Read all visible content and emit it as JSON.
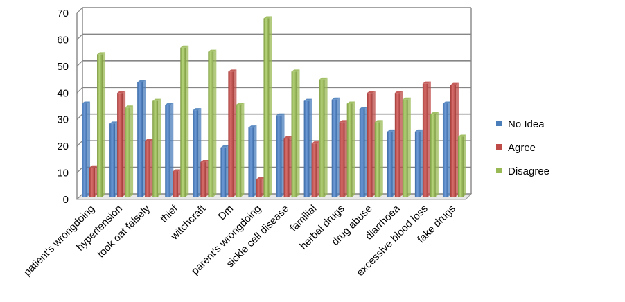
{
  "chart_data": {
    "type": "bar",
    "title": "",
    "xlabel": "",
    "ylabel": "",
    "ylim": [
      0,
      70
    ],
    "yticks": [
      0,
      10,
      20,
      30,
      40,
      50,
      60,
      70
    ],
    "grid": true,
    "legend_position": "right",
    "categories": [
      "patient's wrongdoing",
      "hypertension",
      "took oat falsely",
      "thief",
      "witchcraft",
      "Dm",
      "parent's  wrongdoing",
      "sickle cell disease",
      "familial",
      "herbal drugs",
      "drug abuse",
      "diarrhoea",
      "excessive blood loss",
      "fake drugs"
    ],
    "series": [
      {
        "name": "No Idea",
        "color": "#4a7ebb",
        "values": [
          35,
          27.5,
          43,
          34.5,
          32.5,
          18.5,
          26,
          30.5,
          36,
          36.5,
          33,
          24.5,
          24.5,
          35
        ]
      },
      {
        "name": "Agree",
        "color": "#be4b48",
        "values": [
          11,
          39,
          21,
          9.5,
          13,
          47,
          6.5,
          22,
          20,
          28,
          39,
          39,
          42.5,
          42
        ]
      },
      {
        "name": "Disagree",
        "color": "#98b954",
        "values": [
          53.5,
          33.5,
          36,
          56,
          54.5,
          34.5,
          67,
          47,
          44,
          35,
          28,
          36.5,
          31,
          22.5
        ]
      }
    ]
  }
}
